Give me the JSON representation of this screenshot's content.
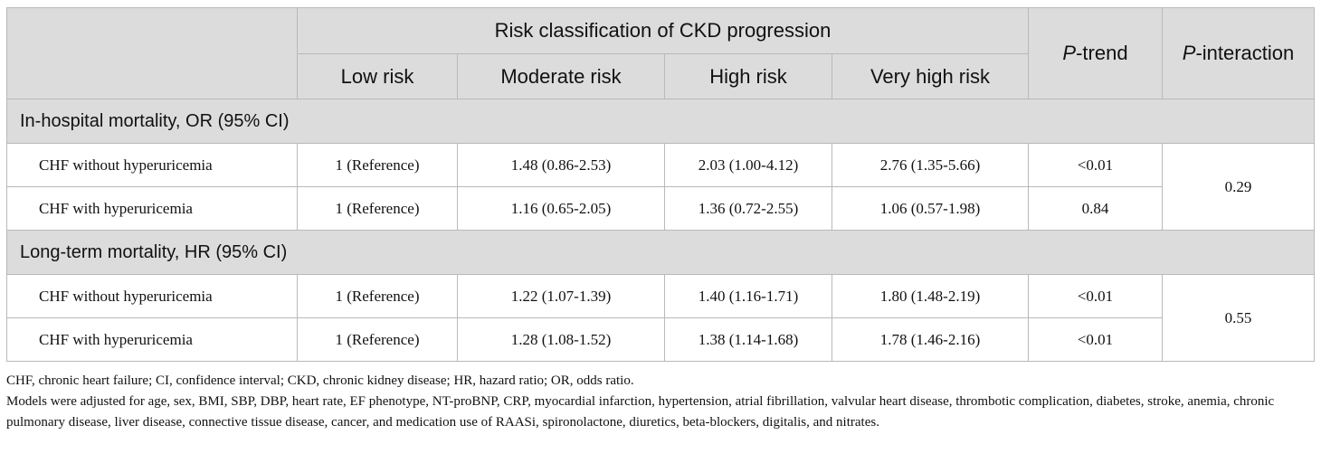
{
  "table": {
    "group_header": "Risk classification of CKD progression",
    "col_headers": [
      "Low risk",
      "Moderate risk",
      "High risk",
      "Very high risk"
    ],
    "p_trend": {
      "italic": "P",
      "rest": "-trend"
    },
    "p_interaction": {
      "italic": "P",
      "rest": "-interaction"
    },
    "sections": [
      {
        "title": "In-hospital mortality, OR (95% CI)",
        "p_interaction": "0.29",
        "rows": [
          {
            "label": "CHF without hyperuricemia",
            "low": "1 (Reference)",
            "moderate": "1.48 (0.86-2.53)",
            "high": "2.03 (1.00-4.12)",
            "very_high": "2.76 (1.35-5.66)",
            "p_trend": "<0.01"
          },
          {
            "label": "CHF with hyperuricemia",
            "low": "1 (Reference)",
            "moderate": "1.16 (0.65-2.05)",
            "high": "1.36 (0.72-2.55)",
            "very_high": "1.06 (0.57-1.98)",
            "p_trend": "0.84"
          }
        ]
      },
      {
        "title": "Long-term mortality, HR (95% CI)",
        "p_interaction": "0.55",
        "rows": [
          {
            "label": "CHF without hyperuricemia",
            "low": "1 (Reference)",
            "moderate": "1.22 (1.07-1.39)",
            "high": "1.40 (1.16-1.71)",
            "very_high": "1.80 (1.48-2.19)",
            "p_trend": "<0.01"
          },
          {
            "label": "CHF with hyperuricemia",
            "low": "1 (Reference)",
            "moderate": "1.28 (1.08-1.52)",
            "high": "1.38 (1.14-1.68)",
            "very_high": "1.78 (1.46-2.16)",
            "p_trend": "<0.01"
          }
        ]
      }
    ]
  },
  "footnotes": {
    "abbreviations": "CHF, chronic heart failure; CI, confidence interval; CKD, chronic kidney disease; HR, hazard ratio; OR, odds ratio.",
    "models": "Models were adjusted for age, sex, BMI, SBP, DBP, heart rate, EF phenotype, NT-proBNP, CRP, myocardial infarction, hypertension, atrial fibrillation, valvular heart disease, thrombotic complication, diabetes, stroke, anemia, chronic pulmonary disease, liver disease, connective tissue disease, cancer, and medication use of RAASi, spironolactone, diuretics, beta-blockers, digitalis, and nitrates."
  }
}
